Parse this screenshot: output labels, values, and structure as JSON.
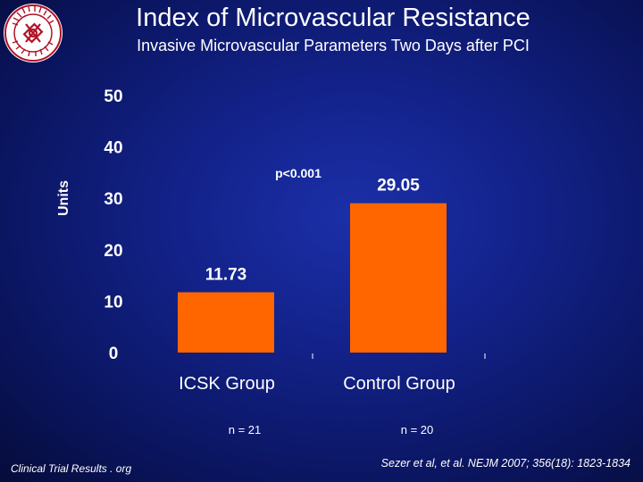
{
  "header": {
    "title": "Index of Microvascular Resistance",
    "subtitle": "Invasive Microvascular Parameters Two Days after PCI"
  },
  "chart_data": {
    "type": "bar",
    "categories": [
      "ICSK Group",
      "Control Group"
    ],
    "values": [
      11.73,
      29.05
    ],
    "data_labels": [
      "11.73",
      "29.05"
    ],
    "sample_sizes": [
      "n = 21",
      "n = 20"
    ],
    "ylabel": "Units",
    "ylim": [
      0,
      50
    ],
    "yticks": [
      0,
      10,
      20,
      30,
      40,
      50
    ],
    "annotation": "p<0.001",
    "bar_color": "#ff6600",
    "grid": false
  },
  "footer": {
    "left": "Clinical Trial Results . org",
    "right": "Sezer et al, et al. NEJM 2007; 356(18): 1823-1834"
  },
  "colors": {
    "background": "#13228a",
    "text": "#ffffff",
    "bar": "#ff6600"
  }
}
